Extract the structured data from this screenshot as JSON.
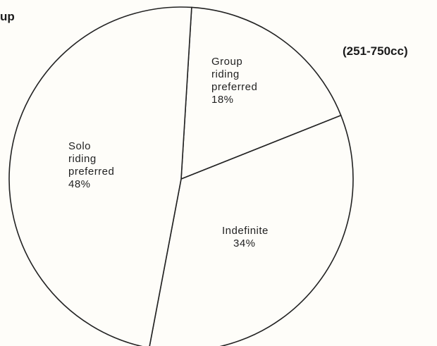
{
  "header": {
    "title_fragment": "up",
    "subtitle": "(251-750cc)"
  },
  "chart_data": {
    "type": "pie",
    "title": "up",
    "subtitle": "(251-750cc)",
    "slices": [
      {
        "label_lines": [
          "Group",
          "riding",
          "preferred",
          "18%"
        ],
        "name": "Group riding preferred",
        "value": 18
      },
      {
        "label_lines": [
          "Indefinite",
          "34%"
        ],
        "name": "Indefinite",
        "value": 34
      },
      {
        "label_lines": [
          "Solo",
          "riding",
          "preferred",
          "48%"
        ],
        "name": "Solo riding preferred",
        "value": 48
      }
    ],
    "colors": {
      "fill": "#fefdf9",
      "stroke": "#222222"
    }
  }
}
